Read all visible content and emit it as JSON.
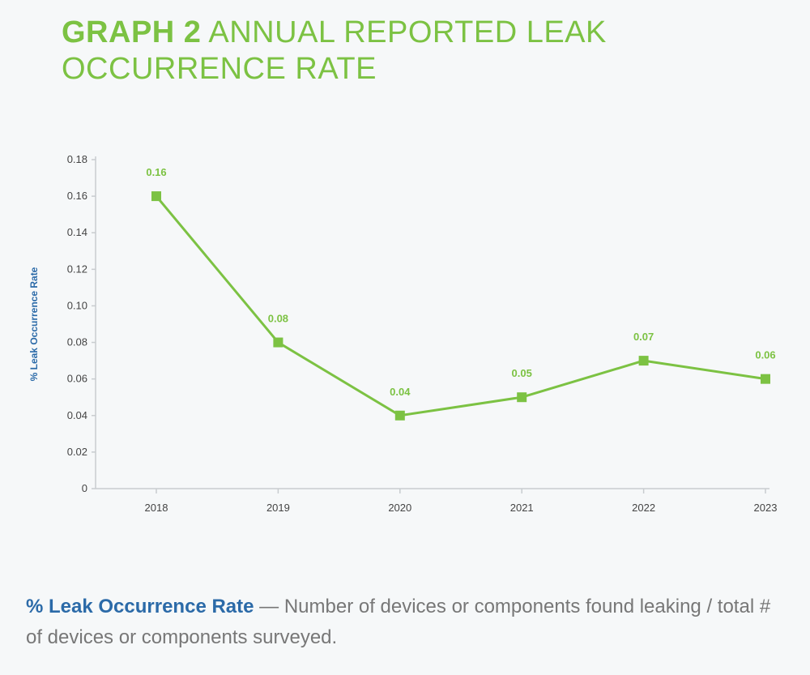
{
  "header": {
    "graph_number": "GRAPH 2",
    "title": "ANNUAL REPORTED LEAK OCCURRENCE RATE"
  },
  "footnote": {
    "term": "% Leak Occurrence Rate",
    "definition": " — Number of devices or components found leaking / total # of devices or components surveyed."
  },
  "colors": {
    "accent_green": "#7cc243",
    "term_blue": "#2b6aa8",
    "background": "#f6f8f9"
  },
  "chart_data": {
    "type": "line",
    "ylabel": "% Leak Occurrence Rate",
    "xlabel": "",
    "categories": [
      "2018",
      "2019",
      "2020",
      "2021",
      "2022",
      "2023"
    ],
    "series": [
      {
        "values": [
          0.16,
          0.08,
          0.04,
          0.05,
          0.07,
          0.06
        ],
        "data_labels": [
          "0.16",
          "0.08",
          "0.04",
          "0.05",
          "0.07",
          "0.06"
        ]
      }
    ],
    "ylim": [
      0,
      0.18
    ],
    "yticks": [
      0,
      0.02,
      0.04,
      0.06,
      0.08,
      0.1,
      0.12,
      0.14,
      0.16,
      0.18
    ],
    "ytick_labels": [
      "0",
      "0.02",
      "0.04",
      "0.06",
      "0.08",
      "0.10",
      "0.12",
      "0.14",
      "0.16",
      "0.18"
    ],
    "grid": false,
    "legend": "none",
    "marker": "square"
  }
}
